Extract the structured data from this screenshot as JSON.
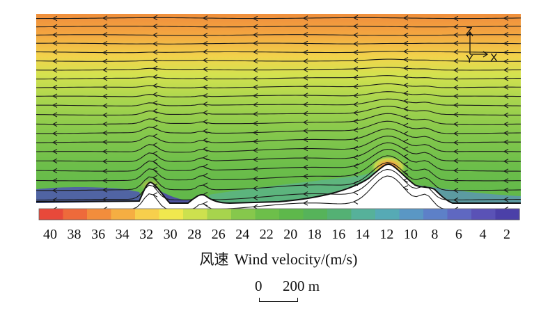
{
  "colorbar": {
    "tick_labels": [
      "40",
      "38",
      "36",
      "34",
      "32",
      "30",
      "28",
      "26",
      "24",
      "22",
      "20",
      "18",
      "16",
      "14",
      "12",
      "10",
      "8",
      "6",
      "4",
      "2"
    ],
    "colors": [
      "#e8493a",
      "#ee6a3b",
      "#f28d3c",
      "#f5ae42",
      "#f7cf4c",
      "#f0e84e",
      "#cde14e",
      "#a7d44d",
      "#86c84c",
      "#6dbf4a",
      "#5eb84b",
      "#56b35a",
      "#54b174",
      "#56b19a",
      "#56aab5",
      "#5a97c4",
      "#5d80c8",
      "#5f68c1",
      "#5a52b6",
      "#4b40a8"
    ]
  },
  "caption": {
    "cn": "风速",
    "en": "Wind velocity/(m/s)"
  },
  "scale": {
    "start": "0",
    "end": "200 m"
  },
  "axes": {
    "z": "Z",
    "y": "Y",
    "x": "X"
  }
}
